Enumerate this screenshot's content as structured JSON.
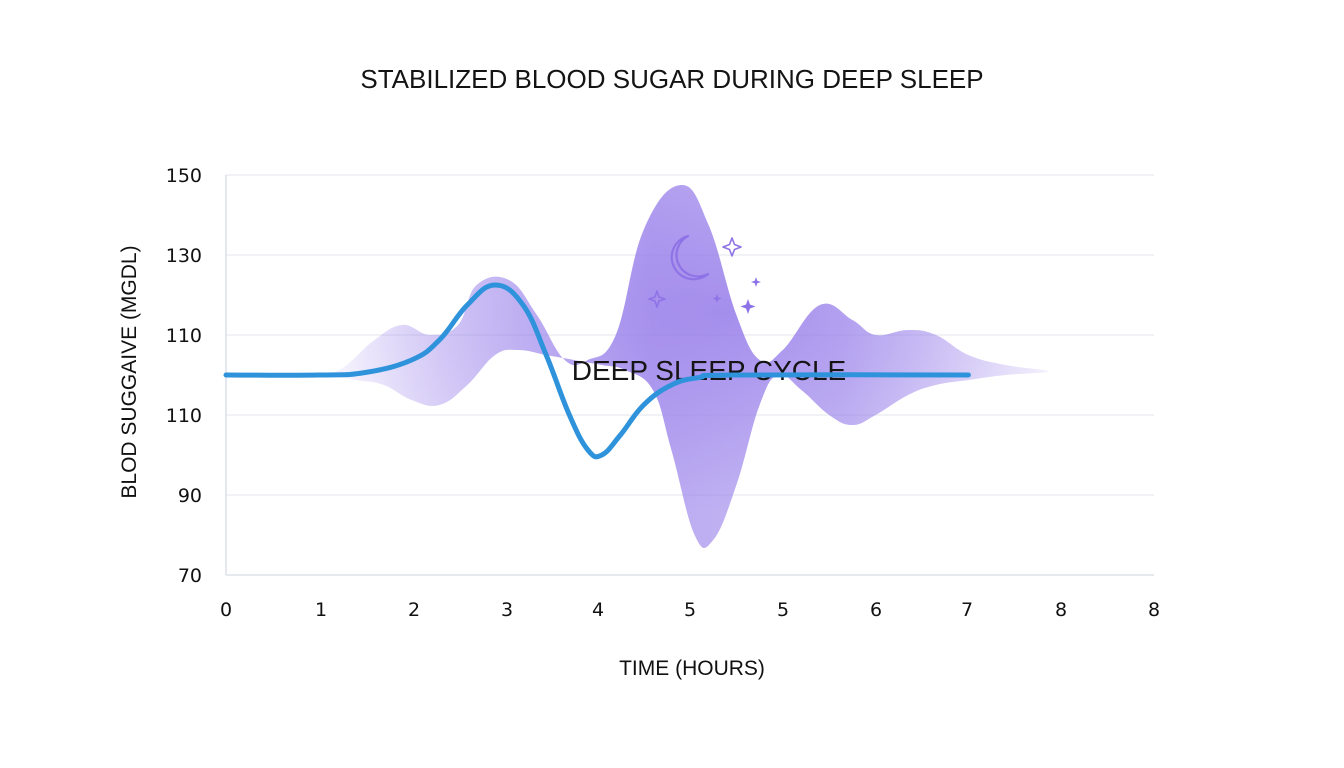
{
  "chart_data": {
    "type": "line",
    "title": "STABILIZED BLOOD SUGAR DURING DEEP SLEEP",
    "xlabel": "TIME (HOURS)",
    "ylabel": "BLOD SUGGAIVE (MGDL)",
    "y_tick_labels": [
      "150",
      "130",
      "110",
      "110",
      "90",
      "70"
    ],
    "x_tick_labels": [
      "0",
      "1",
      "2",
      "3",
      "4",
      "5",
      "5",
      "6",
      "7",
      "8",
      "8"
    ],
    "annotation": "DEEP SLEEP CYCLE",
    "grid": true,
    "legend": "none",
    "series": [
      {
        "values_by_position": [
          [
            0,
            110
          ],
          [
            1.0,
            110
          ],
          [
            1.5,
            110.5
          ],
          [
            2.0,
            113
          ],
          [
            2.3,
            117
          ],
          [
            2.6,
            124
          ],
          [
            2.9,
            128
          ],
          [
            3.2,
            124
          ],
          [
            3.45,
            114
          ],
          [
            3.7,
            102
          ],
          [
            3.9,
            95
          ],
          [
            4.05,
            94
          ],
          [
            4.25,
            98
          ],
          [
            4.5,
            104
          ],
          [
            4.8,
            108
          ],
          [
            5.1,
            109.5
          ],
          [
            5.5,
            110
          ],
          [
            8,
            110
          ]
        ],
        "color": "#2f93dc"
      }
    ],
    "deep_sleep_band": {
      "upper_by_position": [
        [
          1.1,
          110
        ],
        [
          1.3,
          112
        ],
        [
          1.6,
          117
        ],
        [
          1.9,
          120
        ],
        [
          2.2,
          118
        ],
        [
          2.5,
          120
        ],
        [
          2.7,
          128
        ],
        [
          3.05,
          129
        ],
        [
          3.35,
          122
        ],
        [
          3.65,
          113
        ],
        [
          3.9,
          113
        ],
        [
          4.2,
          118
        ],
        [
          4.5,
          139
        ],
        [
          4.9,
          148
        ],
        [
          5.2,
          140
        ],
        [
          5.5,
          122
        ],
        [
          5.75,
          113
        ],
        [
          6.0,
          115
        ],
        [
          6.4,
          124
        ],
        [
          6.75,
          121
        ],
        [
          7.0,
          118
        ],
        [
          7.35,
          119
        ],
        [
          7.65,
          118
        ],
        [
          8.0,
          114
        ],
        [
          8.4,
          112
        ],
        [
          8.8,
          111
        ]
      ],
      "lower_by_position": [
        [
          8.8,
          110.5
        ],
        [
          8.4,
          110
        ],
        [
          8.0,
          109
        ],
        [
          7.65,
          108
        ],
        [
          7.35,
          106
        ],
        [
          7.0,
          102
        ],
        [
          6.75,
          100
        ],
        [
          6.5,
          102
        ],
        [
          6.2,
          107
        ],
        [
          5.95,
          110
        ],
        [
          5.75,
          104
        ],
        [
          5.5,
          88
        ],
        [
          5.25,
          77
        ],
        [
          5.05,
          78
        ],
        [
          4.8,
          95
        ],
        [
          4.6,
          107
        ],
        [
          4.3,
          111
        ],
        [
          4.05,
          112
        ],
        [
          3.75,
          113
        ],
        [
          3.45,
          114
        ],
        [
          3.15,
          115
        ],
        [
          2.9,
          114
        ],
        [
          2.6,
          108
        ],
        [
          2.3,
          104
        ],
        [
          2.0,
          105
        ],
        [
          1.7,
          108
        ],
        [
          1.4,
          109
        ],
        [
          1.1,
          110
        ]
      ],
      "color": "#9f88eb"
    },
    "icons": [
      "crescent-moon-icon",
      "sparkle-icon",
      "sparkle-icon",
      "sparkle-icon",
      "sparkle-icon",
      "sparkle-icon"
    ]
  }
}
